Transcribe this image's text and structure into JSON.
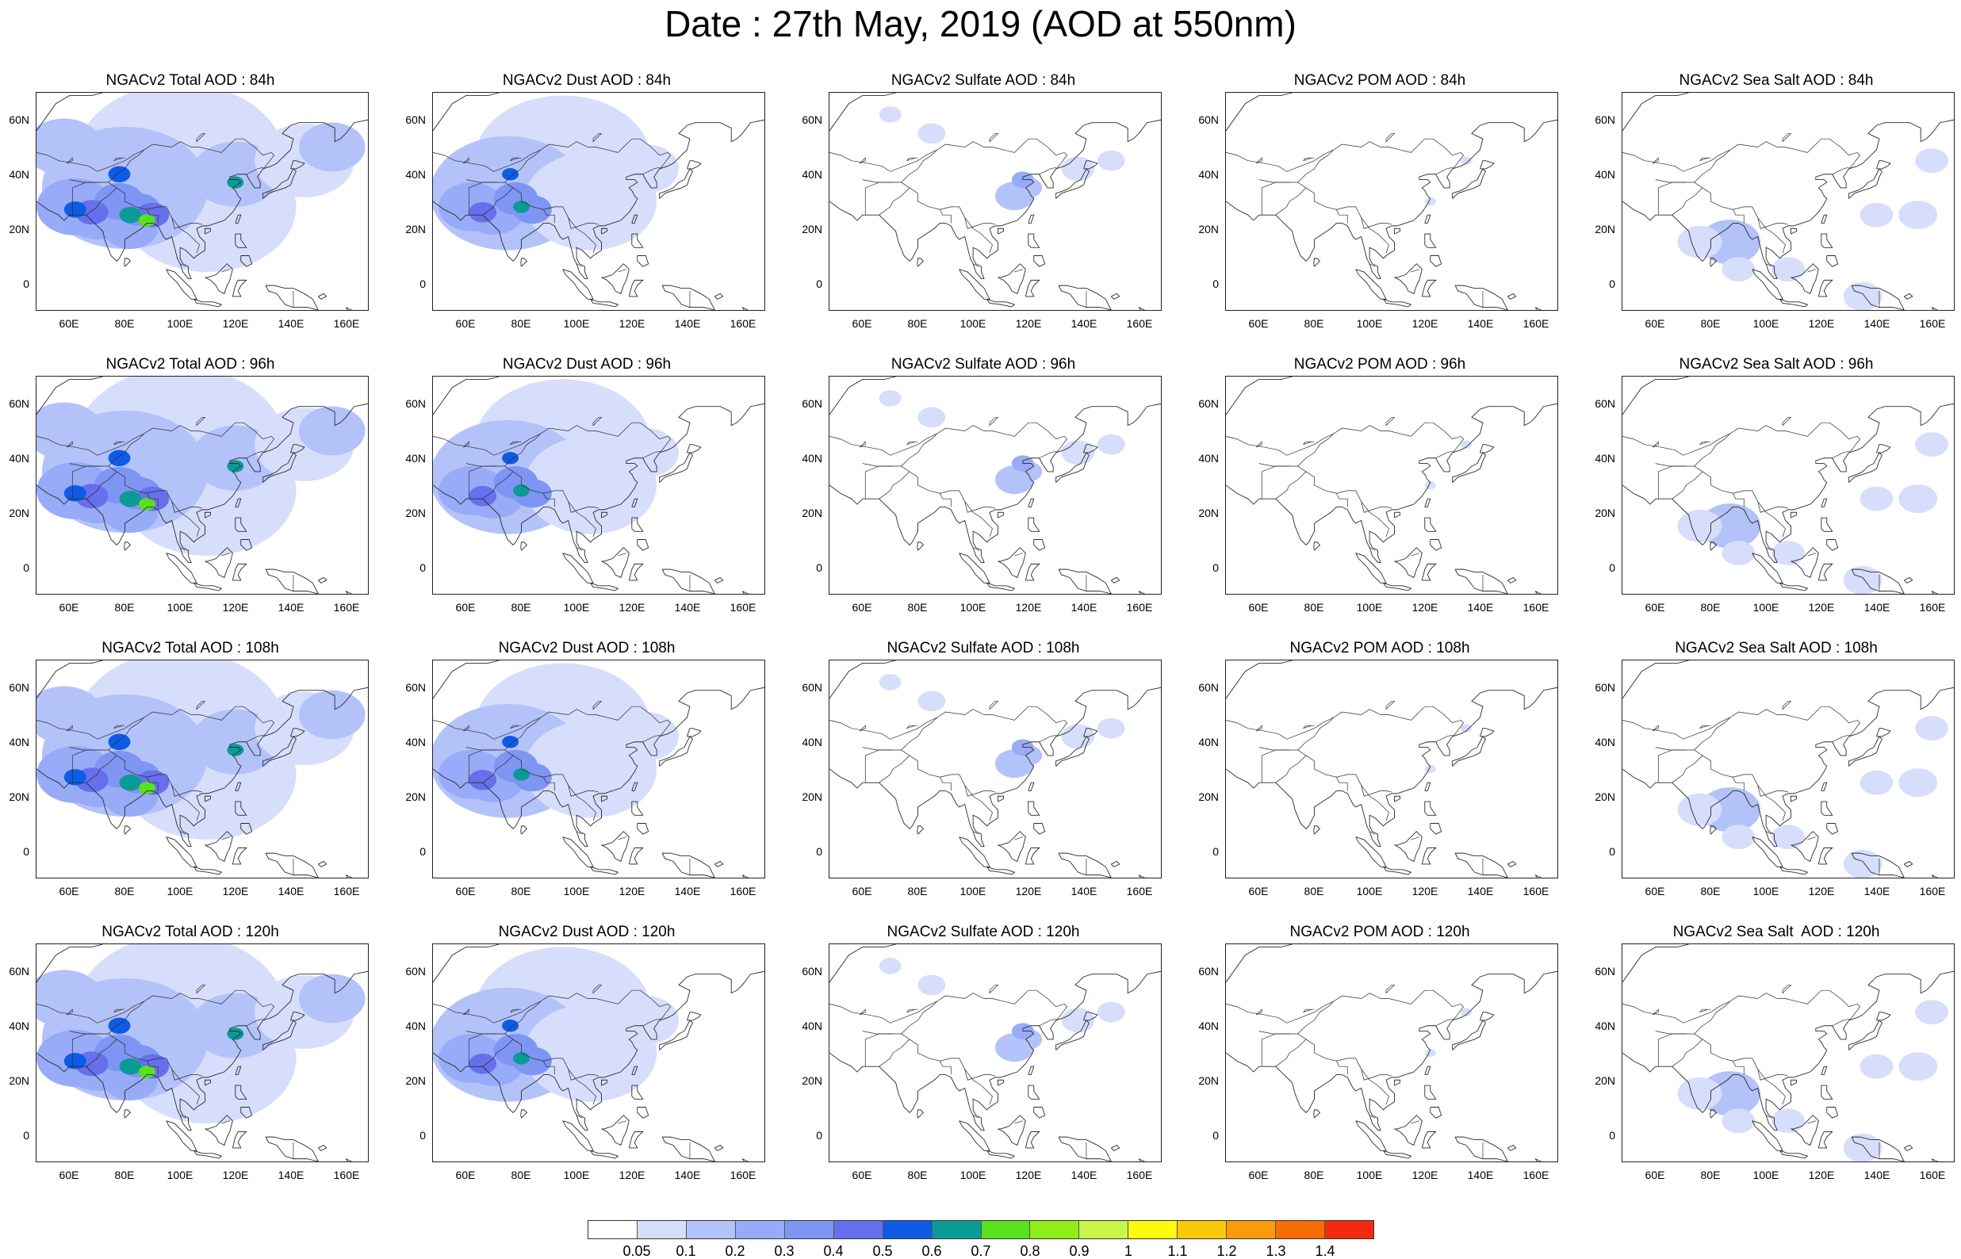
{
  "title": "Date : 27th May, 2019 (AOD at 550nm)",
  "colors": {
    "scale": [
      "#ffffff",
      "#d6defc",
      "#b4c2fa",
      "#97abf8",
      "#7f95f3",
      "#6670ec",
      "#0e5ce6",
      "#0b9b96",
      "#58e21e",
      "#8fee1a",
      "#c7f54a",
      "#fbfb0c",
      "#fbc80a",
      "#f99c09",
      "#f76d08",
      "#f42a10"
    ]
  },
  "colorbar": {
    "labels": [
      "0.05",
      "0.1",
      "0.2",
      "0.3",
      "0.4",
      "0.5",
      "0.6",
      "0.7",
      "0.8",
      "0.9",
      "1",
      "1.1",
      "1.2",
      "1.3",
      "1.4"
    ]
  },
  "axes": {
    "lat_labels": [
      "60N",
      "40N",
      "20N",
      "0"
    ],
    "lon_labels": [
      "60E",
      "80E",
      "100E",
      "120E",
      "140E",
      "160E"
    ]
  },
  "panels": [
    {
      "title": "NGACv2 Total AOD : 84h",
      "species": "total"
    },
    {
      "title": "NGACv2 Dust AOD : 84h",
      "species": "dust"
    },
    {
      "title": "NGACv2 Sulfate AOD : 84h",
      "species": "sulfate"
    },
    {
      "title": "NGACv2 POM AOD : 84h",
      "species": "pom"
    },
    {
      "title": "NGACv2 Sea Salt AOD : 84h",
      "species": "seasalt"
    },
    {
      "title": "NGACv2 Total AOD : 96h",
      "species": "total"
    },
    {
      "title": "NGACv2 Dust AOD : 96h",
      "species": "dust"
    },
    {
      "title": "NGACv2 Sulfate AOD : 96h",
      "species": "sulfate"
    },
    {
      "title": "NGACv2 POM AOD : 96h",
      "species": "pom"
    },
    {
      "title": "NGACv2 Sea Salt AOD : 96h",
      "species": "seasalt"
    },
    {
      "title": "NGACv2 Total AOD : 108h",
      "species": "total"
    },
    {
      "title": "NGACv2 Dust AOD : 108h",
      "species": "dust"
    },
    {
      "title": "NGACv2 Sulfate AOD : 108h",
      "species": "sulfate"
    },
    {
      "title": "NGACv2 POM AOD : 108h",
      "species": "pom"
    },
    {
      "title": "NGACv2 Sea Salt AOD : 108h",
      "species": "seasalt"
    },
    {
      "title": "NGACv2 Total AOD : 120h",
      "species": "total"
    },
    {
      "title": "NGACv2 Dust AOD : 120h",
      "species": "dust"
    },
    {
      "title": "NGACv2 Sulfate AOD : 120h",
      "species": "sulfate"
    },
    {
      "title": "NGACv2 POM AOD : 120h",
      "species": "pom"
    },
    {
      "title": "NGACv2 Sea Salt  AOD : 120h",
      "species": "seasalt"
    }
  ]
}
